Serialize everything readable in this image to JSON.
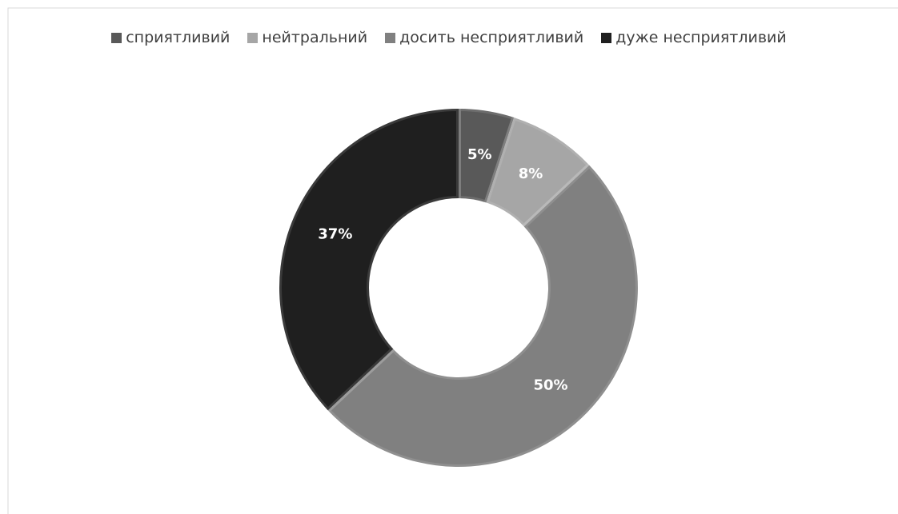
{
  "chart_data": {
    "type": "donut",
    "categories": [
      "сприятливий",
      "нейтральний",
      "досить несприятливий",
      "дуже несприятливий"
    ],
    "values": [
      5,
      8,
      50,
      37
    ],
    "value_labels": [
      "5%",
      "8%",
      "50%",
      "37%"
    ],
    "colors": [
      "#595959",
      "#a6a6a6",
      "#808080",
      "#1f1f1f"
    ],
    "legend": "top"
  }
}
